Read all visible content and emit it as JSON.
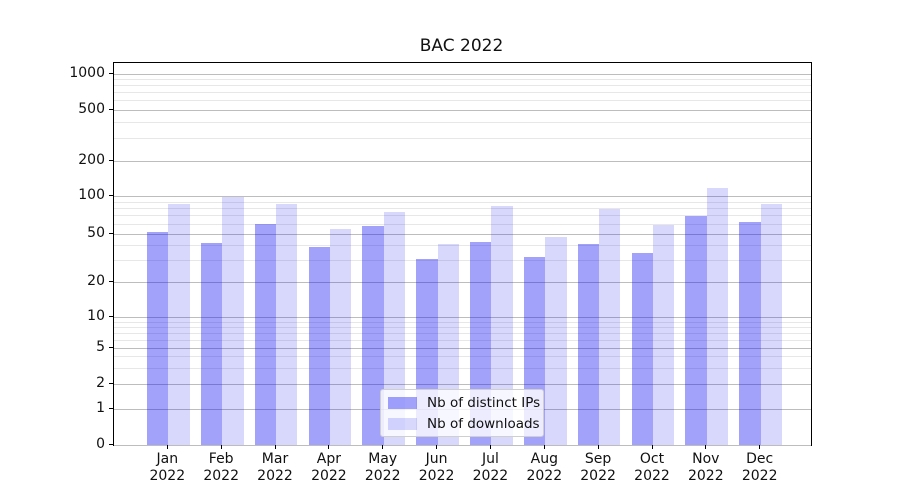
{
  "title": "BAC 2022",
  "chart_data": {
    "type": "bar",
    "title": "BAC 2022",
    "categories": [
      "Jan",
      "Feb",
      "Mar",
      "Apr",
      "May",
      "Jun",
      "Jul",
      "Aug",
      "Sep",
      "Oct",
      "Nov",
      "Dec"
    ],
    "x_tick_year": "2022",
    "series": [
      {
        "name": "Nb of distinct IPs",
        "color": "#a2a2f5",
        "values": [
          52,
          42,
          60,
          39,
          58,
          31,
          43,
          32,
          41,
          35,
          70,
          62
        ]
      },
      {
        "name": "Nb of downloads",
        "color": "#d8d8fd",
        "values": [
          87,
          100,
          88,
          55,
          75,
          41,
          84,
          47,
          79,
          59,
          118,
          88
        ]
      }
    ],
    "yscale": "symlog",
    "yticks": [
      0,
      1,
      2,
      5,
      10,
      20,
      50,
      100,
      200,
      500,
      1000
    ],
    "ytick_labels": [
      "0",
      "1",
      "2",
      "5",
      "10",
      "20",
      "50",
      "100",
      "200",
      "500",
      "1000"
    ],
    "ylim": [
      0,
      1400
    ],
    "xlabel": "",
    "ylabel": "",
    "grid": true,
    "grid_axis": "y",
    "legend_position": "lower-center",
    "colors": {
      "bar_ips": "#a2a2f5",
      "bar_downloads": "#d8d8fd",
      "grid_major": "#bdbdbd",
      "grid_minor": "#e7e7e7",
      "spine": "#000000",
      "background": "#ffffff"
    }
  }
}
